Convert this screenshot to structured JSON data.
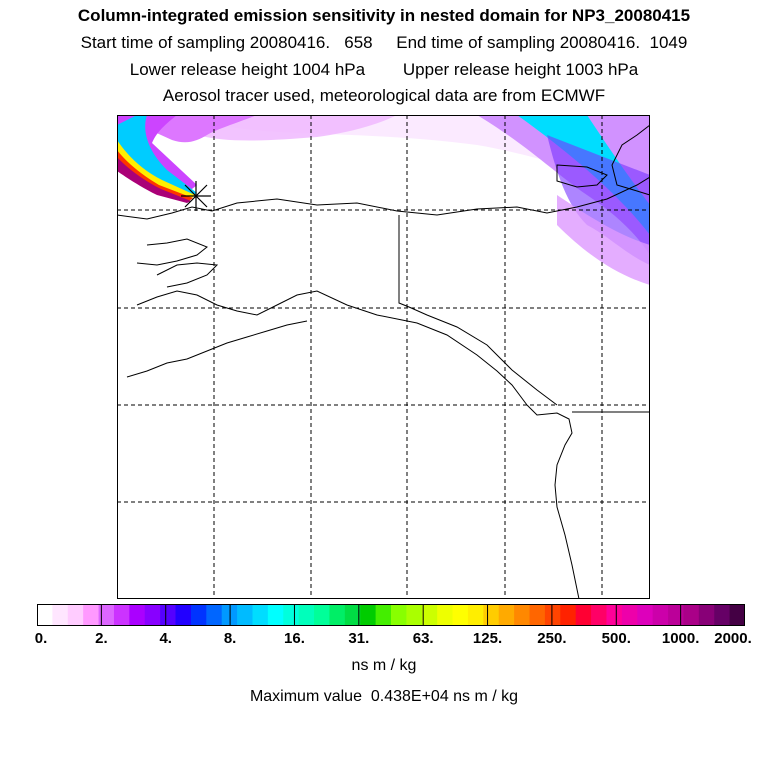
{
  "header": {
    "title": "Column-integrated emission sensitivity in nested domain for NP3_20080415",
    "line2": "Start time of sampling 20080416.   658     End time of sampling 20080416.  1049",
    "line3": "Lower release height 1004 hPa        Upper release height 1003 hPa",
    "line4": "Aerosol tracer used, meteorological data are from ECMWF"
  },
  "colorbar": {
    "ticks": [
      "0.",
      "2.",
      "4.",
      "8.",
      "16.",
      "31.",
      "63.",
      "125.",
      "250.",
      "500.",
      "1000.",
      "2000."
    ],
    "colors": [
      "#ffffff",
      "#ffe6ff",
      "#ffccff",
      "#ff99ff",
      "#dd66ff",
      "#cc33ff",
      "#aa00ff",
      "#8800ff",
      "#5500ff",
      "#2200ff",
      "#0033ff",
      "#0066ff",
      "#0099ff",
      "#00bbff",
      "#00ddff",
      "#00ffff",
      "#00ffdd",
      "#00ffbb",
      "#00ff99",
      "#00ee66",
      "#00dd44",
      "#00cc00",
      "#44ee00",
      "#88ff00",
      "#aaff00",
      "#ccff00",
      "#eeff00",
      "#ffff00",
      "#ffee00",
      "#ffcc00",
      "#ffaa00",
      "#ff8800",
      "#ff6600",
      "#ff4400",
      "#ff2200",
      "#ff0033",
      "#ff0066",
      "#ff0099",
      "#ee00aa",
      "#dd00bb",
      "#cc00aa",
      "#bb0099",
      "#aa0088",
      "#880077",
      "#660066",
      "#440044"
    ],
    "units": "ns m / kg"
  },
  "footer": {
    "max_value": "Maximum value  0.438E+04 ns m / kg"
  },
  "map": {
    "release_marker": "release-point-star"
  }
}
